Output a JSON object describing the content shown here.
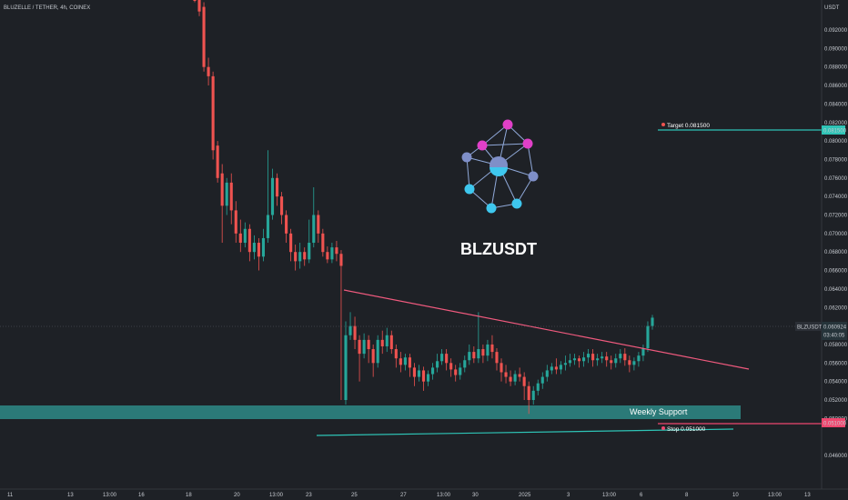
{
  "header": {
    "symbol_line": "BLUZELLE / TETHER, 4h, COINEX"
  },
  "chart_data": {
    "type": "candlestick",
    "symbol": "BLZUSDT",
    "interval": "4h",
    "exchange": "COINEX",
    "currency": "USDT",
    "watermark": "BLZUSDT",
    "ylim": [
      0.045,
      0.096
    ],
    "y_ticks": [
      "0.092000",
      "0.090000",
      "0.088000",
      "0.086000",
      "0.084000",
      "0.082000",
      "0.080000",
      "0.078000",
      "0.076000",
      "0.074000",
      "0.072000",
      "0.070000",
      "0.068000",
      "0.066000",
      "0.064000",
      "0.062000",
      "0.058000",
      "0.056000",
      "0.054000",
      "0.052000",
      "0.050000",
      "0.046000"
    ],
    "x_ticks": [
      "11",
      "13",
      "13:00",
      "16",
      "18",
      "20",
      "13:00",
      "23",
      "25",
      "27",
      "13:00",
      "30",
      "2025",
      "3",
      "13:00",
      "6",
      "8",
      "10",
      "13:00",
      "13"
    ],
    "last_price": {
      "label": "BLZUSDT",
      "value": "0.060924",
      "countdown": "03:40:05"
    },
    "target": {
      "label": "Target 0.081500",
      "value": 0.0815,
      "axis_label": "0.081500"
    },
    "stop": {
      "label": "Stop 0.051000",
      "value": 0.051,
      "axis_label": "0.051000"
    },
    "support_zone": {
      "label": "Weekly Support",
      "low": 0.0513,
      "high": 0.0528
    },
    "candles": [
      [
        0.097,
        0.096,
        0.098,
        0.095
      ],
      [
        0.096,
        0.094,
        0.0965,
        0.0935
      ],
      [
        0.0945,
        0.088,
        0.095,
        0.0875
      ],
      [
        0.088,
        0.087,
        0.089,
        0.086
      ],
      [
        0.087,
        0.079,
        0.0875,
        0.078
      ],
      [
        0.0795,
        0.076,
        0.08,
        0.0755
      ],
      [
        0.0765,
        0.073,
        0.0775,
        0.069
      ],
      [
        0.073,
        0.0755,
        0.076,
        0.072
      ],
      [
        0.0755,
        0.0725,
        0.0765,
        0.071
      ],
      [
        0.0725,
        0.07,
        0.0735,
        0.069
      ],
      [
        0.07,
        0.069,
        0.0715,
        0.068
      ],
      [
        0.069,
        0.0705,
        0.0712,
        0.0685
      ],
      [
        0.0705,
        0.068,
        0.071,
        0.067
      ],
      [
        0.068,
        0.069,
        0.0698,
        0.0672
      ],
      [
        0.069,
        0.0675,
        0.0695,
        0.066
      ],
      [
        0.0675,
        0.0695,
        0.0705,
        0.067
      ],
      [
        0.0695,
        0.072,
        0.079,
        0.069
      ],
      [
        0.072,
        0.076,
        0.077,
        0.0715
      ],
      [
        0.076,
        0.074,
        0.0765,
        0.073
      ],
      [
        0.074,
        0.072,
        0.0745,
        0.071
      ],
      [
        0.072,
        0.07,
        0.0725,
        0.069
      ],
      [
        0.07,
        0.068,
        0.0705,
        0.067
      ],
      [
        0.068,
        0.067,
        0.0688,
        0.066
      ],
      [
        0.067,
        0.068,
        0.069,
        0.0662
      ],
      [
        0.068,
        0.0672,
        0.0685,
        0.0665
      ],
      [
        0.0672,
        0.069,
        0.0715,
        0.0668
      ],
      [
        0.069,
        0.072,
        0.075,
        0.0685
      ],
      [
        0.072,
        0.07,
        0.0725,
        0.069
      ],
      [
        0.07,
        0.068,
        0.0705,
        0.0675
      ],
      [
        0.068,
        0.0672,
        0.0686,
        0.0668
      ],
      [
        0.0672,
        0.0685,
        0.069,
        0.0668
      ],
      [
        0.0685,
        0.0678,
        0.0692,
        0.067
      ],
      [
        0.0678,
        0.0665,
        0.0682,
        0.052
      ],
      [
        0.052,
        0.059,
        0.0605,
        0.0515
      ],
      [
        0.059,
        0.06,
        0.0615,
        0.0585
      ],
      [
        0.06,
        0.0585,
        0.061,
        0.0575
      ],
      [
        0.0585,
        0.057,
        0.059,
        0.054
      ],
      [
        0.057,
        0.0585,
        0.0592,
        0.0565
      ],
      [
        0.0585,
        0.0575,
        0.059,
        0.056
      ],
      [
        0.0575,
        0.056,
        0.058,
        0.0545
      ],
      [
        0.056,
        0.0585,
        0.059,
        0.0555
      ],
      [
        0.0585,
        0.0578,
        0.0595,
        0.057
      ],
      [
        0.0578,
        0.059,
        0.0598,
        0.0572
      ],
      [
        0.059,
        0.0575,
        0.0595,
        0.057
      ],
      [
        0.0575,
        0.0565,
        0.058,
        0.0555
      ],
      [
        0.0565,
        0.0558,
        0.0572,
        0.055
      ],
      [
        0.0558,
        0.0566,
        0.057,
        0.0552
      ],
      [
        0.0566,
        0.0555,
        0.057,
        0.0545
      ],
      [
        0.0555,
        0.0545,
        0.056,
        0.0535
      ],
      [
        0.0545,
        0.0552,
        0.0558,
        0.054
      ],
      [
        0.0552,
        0.054,
        0.0556,
        0.053
      ],
      [
        0.054,
        0.0548,
        0.0552,
        0.0535
      ],
      [
        0.0548,
        0.0555,
        0.056,
        0.0542
      ],
      [
        0.0555,
        0.0562,
        0.057,
        0.055
      ],
      [
        0.0562,
        0.057,
        0.0575,
        0.0558
      ],
      [
        0.057,
        0.056,
        0.0575,
        0.0552
      ],
      [
        0.056,
        0.0553,
        0.0565,
        0.0545
      ],
      [
        0.0553,
        0.0547,
        0.0558,
        0.054
      ],
      [
        0.0547,
        0.0555,
        0.056,
        0.0542
      ],
      [
        0.0555,
        0.0563,
        0.0568,
        0.055
      ],
      [
        0.0563,
        0.0572,
        0.058,
        0.0558
      ],
      [
        0.0572,
        0.0565,
        0.0578,
        0.056
      ],
      [
        0.0565,
        0.0575,
        0.0615,
        0.056
      ],
      [
        0.0575,
        0.0568,
        0.058,
        0.056
      ],
      [
        0.0568,
        0.058,
        0.0585,
        0.0562
      ],
      [
        0.058,
        0.0572,
        0.059,
        0.0565
      ],
      [
        0.0572,
        0.056,
        0.0576,
        0.0552
      ],
      [
        0.056,
        0.055,
        0.0565,
        0.054
      ],
      [
        0.055,
        0.0545,
        0.0558,
        0.0538
      ],
      [
        0.0545,
        0.054,
        0.0552,
        0.0535
      ],
      [
        0.054,
        0.0548,
        0.0552,
        0.0536
      ],
      [
        0.0548,
        0.0545,
        0.0555,
        0.054
      ],
      [
        0.0545,
        0.0535,
        0.055,
        0.052
      ],
      [
        0.0535,
        0.052,
        0.054,
        0.0505
      ],
      [
        0.052,
        0.053,
        0.0535,
        0.0515
      ],
      [
        0.053,
        0.0538,
        0.0542,
        0.0525
      ],
      [
        0.0538,
        0.0545,
        0.055,
        0.0532
      ],
      [
        0.0545,
        0.0552,
        0.0558,
        0.054
      ],
      [
        0.0552,
        0.0556,
        0.056,
        0.0548
      ],
      [
        0.0556,
        0.0553,
        0.0565,
        0.0548
      ],
      [
        0.0553,
        0.0558,
        0.0562,
        0.0548
      ],
      [
        0.0558,
        0.056,
        0.0568,
        0.0552
      ],
      [
        0.056,
        0.0563,
        0.057,
        0.0556
      ],
      [
        0.0563,
        0.0565,
        0.057,
        0.0558
      ],
      [
        0.0565,
        0.0562,
        0.0568,
        0.0555
      ],
      [
        0.0562,
        0.0566,
        0.0572,
        0.0556
      ],
      [
        0.0566,
        0.057,
        0.0575,
        0.056
      ],
      [
        0.057,
        0.0563,
        0.0575,
        0.0556
      ],
      [
        0.0563,
        0.0565,
        0.057,
        0.0557
      ],
      [
        0.0565,
        0.0567,
        0.0572,
        0.056
      ],
      [
        0.0567,
        0.0563,
        0.0572,
        0.0556
      ],
      [
        0.0563,
        0.056,
        0.0568,
        0.0553
      ],
      [
        0.056,
        0.0565,
        0.057,
        0.0555
      ],
      [
        0.0565,
        0.057,
        0.0575,
        0.056
      ],
      [
        0.057,
        0.0563,
        0.0576,
        0.0557
      ],
      [
        0.0563,
        0.0558,
        0.0568,
        0.055
      ],
      [
        0.0558,
        0.0562,
        0.0566,
        0.0552
      ],
      [
        0.0562,
        0.0568,
        0.0572,
        0.0556
      ],
      [
        0.0568,
        0.0576,
        0.058,
        0.0562
      ],
      [
        0.0576,
        0.06,
        0.0605,
        0.0572
      ],
      [
        0.06,
        0.0609,
        0.0612,
        0.0596
      ]
    ]
  },
  "colors": {
    "bg": "#1e2126",
    "up": "#26a69a",
    "down": "#ef5350",
    "trend": "#f05a7e",
    "support": "#2b7a78",
    "target": "#2ec4b6",
    "stop": "#ef476f",
    "tick": "#c7cbd1",
    "watermark": "#ffffff"
  }
}
